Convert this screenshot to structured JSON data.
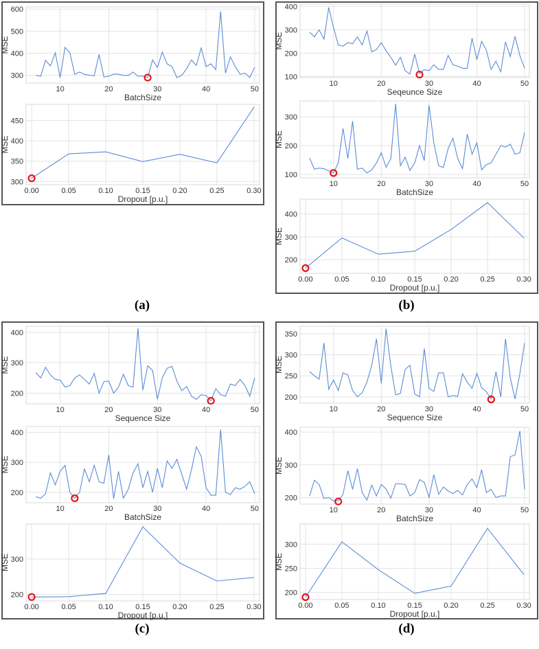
{
  "captions": {
    "a": "(a)",
    "b": "(b)",
    "c": "(c)",
    "d": "(d)"
  },
  "colors": {
    "line": "#5b8bd4",
    "best_marker": "#e8141c",
    "frame": "#555555"
  },
  "chart_data": [
    {
      "id": "a1",
      "panel": "a",
      "type": "line",
      "xlabel": "BatchSize",
      "ylabel": "MSE",
      "xlim": [
        3,
        51
      ],
      "ylim": [
        265,
        610
      ],
      "xticks": [
        10,
        20,
        30,
        40,
        50
      ],
      "yticks": [
        300,
        400,
        500,
        600
      ],
      "ytick_labels": [
        "300",
        "400",
        "500",
        "600"
      ],
      "x": [
        5,
        6,
        7,
        8,
        9,
        10,
        11,
        12,
        13,
        14,
        15,
        16,
        17,
        18,
        19,
        20,
        21,
        22,
        23,
        24,
        25,
        26,
        27,
        28,
        29,
        30,
        31,
        32,
        33,
        34,
        35,
        36,
        37,
        38,
        39,
        40,
        41,
        42,
        43,
        44,
        45,
        46,
        47,
        48,
        49,
        50
      ],
      "y": [
        300,
        296,
        368,
        343,
        402,
        290,
        427,
        402,
        305,
        315,
        305,
        301,
        298,
        395,
        292,
        296,
        306,
        305,
        300,
        300,
        315,
        296,
        297,
        290,
        370,
        336,
        405,
        352,
        340,
        290,
        300,
        330,
        370,
        345,
        424,
        340,
        352,
        326,
        590,
        310,
        383,
        340,
        305,
        310,
        290,
        337
      ],
      "best": [
        28,
        290
      ]
    },
    {
      "id": "a2",
      "panel": "a",
      "type": "line",
      "xlabel": "Dropout [p.u.]",
      "ylabel": "MSE",
      "xlim": [
        -0.0075,
        0.3075
      ],
      "ylim": [
        292,
        490
      ],
      "xticks": [
        0,
        0.05,
        0.1,
        0.15,
        0.2,
        0.25,
        0.3
      ],
      "xtick_labels": [
        "0.00",
        "0.05",
        "0.10",
        "0.15",
        "0.20",
        "0.25",
        "0.30"
      ],
      "yticks": [
        300,
        350,
        400,
        450
      ],
      "ytick_labels": [
        "300",
        "350",
        "400",
        "450"
      ],
      "x": [
        0,
        0.05,
        0.1,
        0.15,
        0.2,
        0.25,
        0.3
      ],
      "y": [
        308,
        368,
        373,
        349,
        367,
        346,
        483
      ],
      "best": [
        0,
        308
      ]
    },
    {
      "id": "b1",
      "panel": "b",
      "type": "line",
      "xlabel": "Seqeunce Size",
      "ylabel": "MSE",
      "xlim": [
        3,
        51
      ],
      "ylim": [
        95,
        410
      ],
      "xticks": [
        10,
        20,
        30,
        40,
        50
      ],
      "yticks": [
        100,
        200,
        300,
        400
      ],
      "ytick_labels": [
        "100",
        "200",
        "300",
        "400"
      ],
      "x": [
        5,
        6,
        7,
        8,
        9,
        10,
        11,
        12,
        13,
        14,
        15,
        16,
        17,
        18,
        19,
        20,
        21,
        22,
        23,
        24,
        25,
        26,
        27,
        28,
        29,
        30,
        31,
        32,
        33,
        34,
        35,
        36,
        37,
        38,
        39,
        40,
        41,
        42,
        43,
        44,
        45,
        46,
        47,
        48,
        49,
        50
      ],
      "y": [
        290,
        270,
        300,
        260,
        396,
        310,
        235,
        230,
        245,
        240,
        270,
        235,
        295,
        205,
        215,
        245,
        210,
        182,
        148,
        182,
        125,
        110,
        196,
        112,
        129,
        125,
        150,
        130,
        130,
        190,
        150,
        144,
        135,
        135,
        264,
        172,
        250,
        212,
        130,
        165,
        120,
        248,
        185,
        272,
        190,
        135
      ],
      "best": [
        28,
        108
      ]
    },
    {
      "id": "b2",
      "panel": "b",
      "type": "line",
      "xlabel": "BatchSize",
      "ylabel": "MSE",
      "xlim": [
        3,
        51
      ],
      "ylim": [
        88,
        355
      ],
      "xticks": [
        10,
        20,
        30,
        40,
        50
      ],
      "yticks": [
        100,
        200,
        300
      ],
      "ytick_labels": [
        "100",
        "200",
        "300"
      ],
      "x": [
        5,
        6,
        7,
        8,
        9,
        10,
        11,
        12,
        13,
        14,
        15,
        16,
        17,
        18,
        19,
        20,
        21,
        22,
        23,
        24,
        25,
        26,
        27,
        28,
        29,
        30,
        31,
        32,
        33,
        34,
        35,
        36,
        37,
        38,
        39,
        40,
        41,
        42,
        43,
        44,
        45,
        46,
        47,
        48,
        49,
        50
      ],
      "y": [
        157,
        118,
        122,
        120,
        112,
        105,
        140,
        260,
        155,
        285,
        118,
        122,
        105,
        116,
        140,
        175,
        125,
        155,
        345,
        130,
        160,
        114,
        140,
        200,
        148,
        340,
        210,
        130,
        124,
        190,
        225,
        155,
        120,
        240,
        170,
        210,
        116,
        134,
        140,
        170,
        200,
        195,
        205,
        170,
        175,
        245
      ],
      "best": [
        10,
        105
      ]
    },
    {
      "id": "b3",
      "panel": "b",
      "type": "line",
      "xlabel": "Dropout [p.u.]",
      "ylabel": "MSE",
      "xlim": [
        -0.0075,
        0.3075
      ],
      "ylim": [
        140,
        465
      ],
      "xticks": [
        0,
        0.05,
        0.1,
        0.15,
        0.2,
        0.25,
        0.3
      ],
      "xtick_labels": [
        "0.00",
        "0.05",
        "0.10",
        "0.15",
        "0.20",
        "0.25",
        "0.30"
      ],
      "yticks": [
        200,
        300,
        400
      ],
      "ytick_labels": [
        "200",
        "300",
        "400"
      ],
      "x": [
        0,
        0.05,
        0.1,
        0.15,
        0.2,
        0.25,
        0.3
      ],
      "y": [
        163,
        295,
        224,
        237,
        332,
        450,
        295
      ],
      "best": [
        0,
        163
      ]
    },
    {
      "id": "c1",
      "panel": "c",
      "type": "line",
      "xlabel": "Sequence Size",
      "ylabel": "MSE",
      "xlim": [
        3,
        51
      ],
      "ylim": [
        165,
        420
      ],
      "xticks": [
        10,
        20,
        30,
        40,
        50
      ],
      "yticks": [
        200,
        300,
        400
      ],
      "ytick_labels": [
        "200",
        "300",
        "400"
      ],
      "x": [
        5,
        6,
        7,
        8,
        9,
        10,
        11,
        12,
        13,
        14,
        15,
        16,
        17,
        18,
        19,
        20,
        21,
        22,
        23,
        24,
        25,
        26,
        27,
        28,
        29,
        30,
        31,
        32,
        33,
        34,
        35,
        36,
        37,
        38,
        39,
        40,
        41,
        42,
        43,
        44,
        45,
        46,
        47,
        48,
        49,
        50
      ],
      "y": [
        268,
        250,
        285,
        260,
        245,
        243,
        220,
        225,
        250,
        260,
        245,
        230,
        265,
        200,
        238,
        240,
        200,
        220,
        262,
        225,
        220,
        413,
        210,
        290,
        275,
        180,
        250,
        282,
        288,
        240,
        208,
        222,
        190,
        180,
        195,
        192,
        175,
        215,
        195,
        190,
        230,
        225,
        245,
        225,
        190,
        250
      ],
      "best": [
        41,
        175
      ]
    },
    {
      "id": "c2",
      "panel": "c",
      "type": "line",
      "xlabel": "BatchSize",
      "ylabel": "MSE",
      "xlim": [
        3,
        51
      ],
      "ylim": [
        165,
        420
      ],
      "xticks": [
        10,
        20,
        30,
        40,
        50
      ],
      "yticks": [
        200,
        300,
        400
      ],
      "ytick_labels": [
        "200",
        "300",
        "400"
      ],
      "x": [
        5,
        6,
        7,
        8,
        9,
        10,
        11,
        12,
        13,
        14,
        15,
        16,
        17,
        18,
        19,
        20,
        21,
        22,
        23,
        24,
        25,
        26,
        27,
        28,
        29,
        30,
        31,
        32,
        33,
        34,
        35,
        36,
        37,
        38,
        39,
        40,
        41,
        42,
        43,
        44,
        45,
        46,
        47,
        48,
        49,
        50
      ],
      "y": [
        185,
        180,
        195,
        265,
        225,
        270,
        290,
        200,
        180,
        200,
        278,
        235,
        290,
        235,
        230,
        325,
        178,
        270,
        180,
        210,
        265,
        295,
        215,
        270,
        200,
        280,
        215,
        305,
        280,
        310,
        260,
        210,
        275,
        352,
        320,
        215,
        190,
        190,
        410,
        200,
        192,
        215,
        210,
        220,
        235,
        195
      ],
      "best": [
        13,
        180
      ]
    },
    {
      "id": "c3",
      "panel": "c",
      "type": "line",
      "xlabel": "Dropout [p.u.]",
      "ylabel": "MSE",
      "xlim": [
        -0.0075,
        0.3075
      ],
      "ylim": [
        182,
        398
      ],
      "xticks": [
        0,
        0.05,
        0.1,
        0.15,
        0.2,
        0.25,
        0.3
      ],
      "xtick_labels": [
        "0.00",
        "0.05",
        "0.10",
        "0.15",
        "0.20",
        "0.25",
        "0.30"
      ],
      "yticks": [
        200,
        300
      ],
      "ytick_labels": [
        "200",
        "300"
      ],
      "x": [
        0,
        0.05,
        0.1,
        0.15,
        0.2,
        0.25,
        0.3
      ],
      "y": [
        193,
        194,
        203,
        390,
        288,
        238,
        248
      ],
      "best": [
        0,
        193
      ]
    },
    {
      "id": "d1",
      "panel": "d",
      "type": "line",
      "xlabel": "Sequence Size",
      "ylabel": "MSE",
      "xlim": [
        3,
        51
      ],
      "ylim": [
        185,
        368
      ],
      "xticks": [
        10,
        20,
        30,
        40,
        50
      ],
      "yticks": [
        200,
        250,
        300,
        350
      ],
      "ytick_labels": [
        "200",
        "250",
        "300",
        "350"
      ],
      "x": [
        5,
        6,
        7,
        8,
        9,
        10,
        11,
        12,
        13,
        14,
        15,
        16,
        17,
        18,
        19,
        20,
        21,
        22,
        23,
        24,
        25,
        26,
        27,
        28,
        29,
        30,
        31,
        32,
        33,
        34,
        35,
        36,
        37,
        38,
        39,
        40,
        41,
        42,
        43,
        44,
        45,
        46,
        47,
        48,
        49,
        50
      ],
      "y": [
        260,
        250,
        242,
        328,
        218,
        240,
        215,
        257,
        252,
        215,
        200,
        210,
        235,
        275,
        338,
        232,
        362,
        273,
        205,
        208,
        265,
        275,
        207,
        200,
        315,
        220,
        213,
        257,
        257,
        200,
        203,
        201,
        255,
        235,
        220,
        256,
        222,
        212,
        195,
        260,
        200,
        338,
        245,
        195,
        255,
        328
      ],
      "best": [
        43,
        194
      ]
    },
    {
      "id": "d2",
      "panel": "d",
      "type": "line",
      "xlabel": "BatchSize",
      "ylabel": "MSE",
      "xlim": [
        3,
        51
      ],
      "ylim": [
        180,
        415
      ],
      "xticks": [
        10,
        20,
        30,
        40,
        50
      ],
      "yticks": [
        200,
        300,
        400
      ],
      "ytick_labels": [
        "200",
        "300",
        "400"
      ],
      "x": [
        5,
        6,
        7,
        8,
        9,
        10,
        11,
        12,
        13,
        14,
        15,
        16,
        17,
        18,
        19,
        20,
        21,
        22,
        23,
        24,
        25,
        26,
        27,
        28,
        29,
        30,
        31,
        32,
        33,
        34,
        35,
        36,
        37,
        38,
        39,
        40,
        41,
        42,
        43,
        44,
        45,
        46,
        47,
        48,
        49,
        50
      ],
      "y": [
        205,
        253,
        240,
        197,
        200,
        190,
        190,
        210,
        282,
        225,
        288,
        215,
        192,
        238,
        205,
        240,
        226,
        198,
        242,
        242,
        240,
        205,
        215,
        255,
        246,
        200,
        270,
        210,
        232,
        220,
        212,
        222,
        208,
        240,
        257,
        230,
        285,
        215,
        225,
        200,
        205,
        205,
        325,
        330,
        403,
        225
      ],
      "best": [
        11,
        188
      ]
    },
    {
      "id": "d3",
      "panel": "d",
      "type": "line",
      "xlabel": "Dropout [p.u.]",
      "ylabel": "MSE",
      "xlim": [
        -0.0075,
        0.3075
      ],
      "ylim": [
        185,
        342
      ],
      "xticks": [
        0,
        0.05,
        0.1,
        0.15,
        0.2,
        0.25,
        0.3
      ],
      "xtick_labels": [
        "0.00",
        "0.05",
        "0.10",
        "0.15",
        "0.20",
        "0.25",
        "0.30"
      ],
      "yticks": [
        200,
        250,
        300
      ],
      "ytick_labels": [
        "200",
        "250",
        "300"
      ],
      "x": [
        0,
        0.05,
        0.1,
        0.15,
        0.2,
        0.25,
        0.3
      ],
      "y": [
        190,
        305,
        247,
        198,
        213,
        333,
        237
      ],
      "best": [
        0,
        190
      ]
    }
  ]
}
